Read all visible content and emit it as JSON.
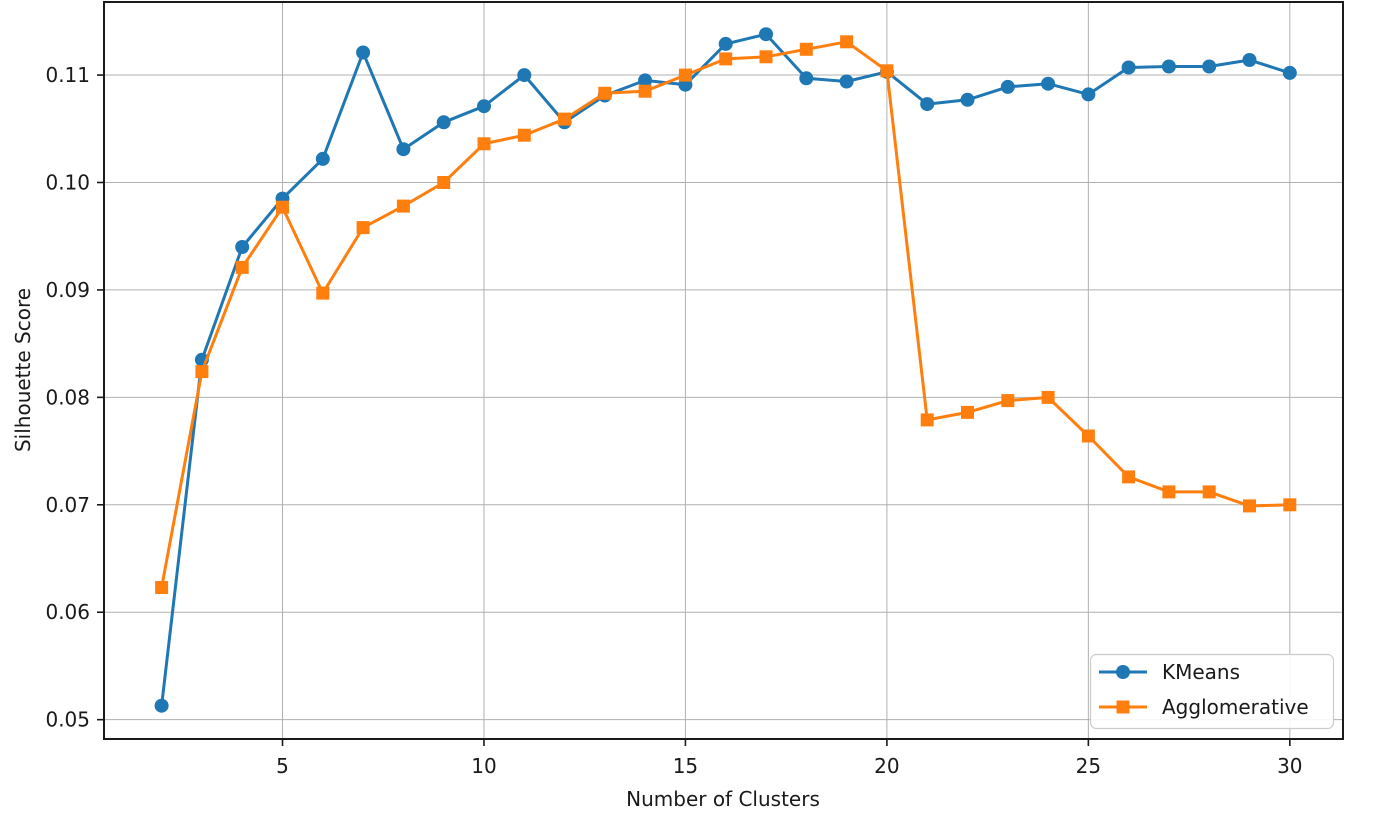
{
  "chart_data": {
    "type": "line",
    "title": "",
    "xlabel": "Number of Clusters",
    "ylabel": "Silhouette Score",
    "x": [
      2,
      3,
      4,
      5,
      6,
      7,
      8,
      9,
      10,
      11,
      12,
      13,
      14,
      15,
      16,
      17,
      18,
      19,
      20,
      21,
      22,
      23,
      24,
      25,
      26,
      27,
      28,
      29,
      30
    ],
    "series": [
      {
        "name": "KMeans",
        "color": "#1f77b4",
        "marker": "circle",
        "values": [
          0.0513,
          0.0835,
          0.094,
          0.0985,
          0.1022,
          0.1121,
          0.1031,
          0.1056,
          0.1071,
          0.11,
          0.1056,
          0.1081,
          0.1095,
          0.1091,
          0.1129,
          0.1138,
          0.1097,
          0.1094,
          0.1103,
          0.1073,
          0.1077,
          0.1089,
          0.1092,
          0.1082,
          0.1107,
          0.1108,
          0.1108,
          0.1114,
          0.1102
        ]
      },
      {
        "name": "Agglomerative",
        "color": "#ff7f0e",
        "marker": "square",
        "values": [
          0.0623,
          0.0824,
          0.0921,
          0.0977,
          0.0897,
          0.0958,
          0.0978,
          0.1,
          0.1036,
          0.1044,
          0.1059,
          0.1083,
          0.1085,
          0.11,
          0.1115,
          0.1117,
          0.1124,
          0.1131,
          0.1104,
          0.0779,
          0.0786,
          0.0797,
          0.08,
          0.0764,
          0.0726,
          0.0712,
          0.0712,
          0.0699,
          0.07
        ]
      }
    ],
    "xticks": [
      5,
      10,
      15,
      20,
      25,
      30
    ],
    "yticks": [
      "0.05",
      "0.06",
      "0.07",
      "0.08",
      "0.09",
      "0.10",
      "0.11"
    ],
    "xlim": [
      0.57,
      31.32
    ],
    "ylim": [
      0.0482,
      0.1168
    ],
    "grid": true,
    "legend_position": "lower right"
  }
}
